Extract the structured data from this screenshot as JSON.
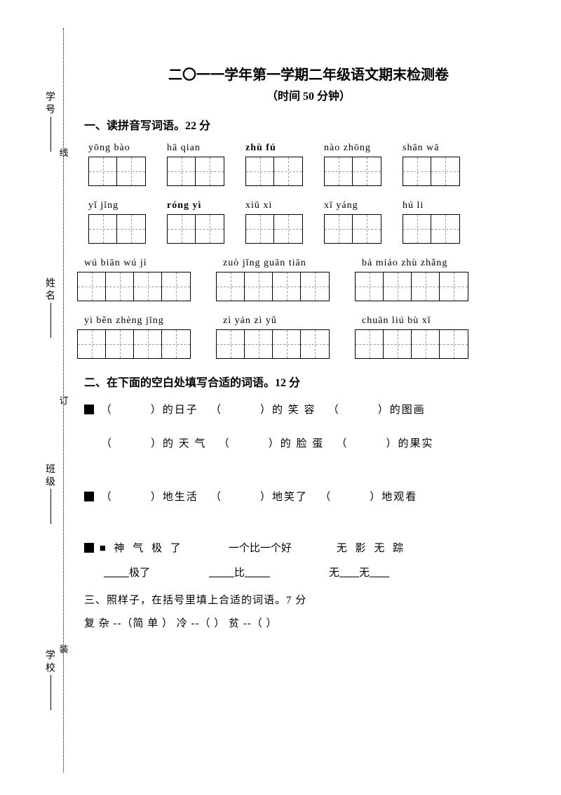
{
  "binding": {
    "labels": [
      "学号",
      "姓名",
      "班级",
      "学校"
    ],
    "chars": [
      "线",
      "订",
      "装"
    ]
  },
  "title": "二〇一一学年第一学期二年级语文期末检测卷",
  "subtitle": "（时间 50 分钟）",
  "q1": {
    "head": "一、读拼音写词语。22 分",
    "rows": [
      {
        "pinyin": [
          "yōng bào",
          "hā  qian",
          "zhù fú",
          "nào zhōng",
          "shān wā"
        ],
        "cells": [
          2,
          2,
          2,
          2,
          2
        ]
      },
      {
        "pinyin": [
          "yǐ  jīng",
          "róng  yì",
          "xiū   xi",
          "xī  yáng",
          "hú    li"
        ],
        "cells": [
          2,
          2,
          2,
          2,
          2
        ]
      },
      {
        "pinyin": [
          "wú   biān wú jì",
          "zuò jǐng guān tiān",
          "bá miáo zhù zhǎng"
        ],
        "cells": [
          4,
          4,
          4
        ]
      },
      {
        "pinyin": [
          "yì běn zhèng jīng",
          "zì  yán  zì   yǔ",
          "chuān  liú  bù  xī"
        ],
        "cells": [
          4,
          4,
          4
        ]
      }
    ]
  },
  "q2": {
    "head": "二、在下面的空白处填写合适的词语。12 分",
    "group1a": "■ （          ）的日子   （          ）的 笑 容   （          ）的图画",
    "group1b": "（          ）的 天 气   （          ）的 脸 蛋   （          ）的果实",
    "group2": "■ （          ）地生活   （          ）地笑了   （          ）地观看",
    "group3_top": {
      "a": "■  神 气 极 了",
      "b": "一个比一个好",
      "c": "无  影  无  踪"
    },
    "group3_bot": {
      "a": "极了",
      "b": "比",
      "c_pre": "无",
      "c_mid": "无"
    }
  },
  "q3": {
    "head": "三、照样子，在括号里填上合适的词语。7 分",
    "line": "复 杂 --（简 单 ）   冷    --（          ）     贫   --（          ）"
  },
  "colors": {
    "text": "#000000",
    "bg": "#ffffff",
    "dash": "#999999"
  }
}
